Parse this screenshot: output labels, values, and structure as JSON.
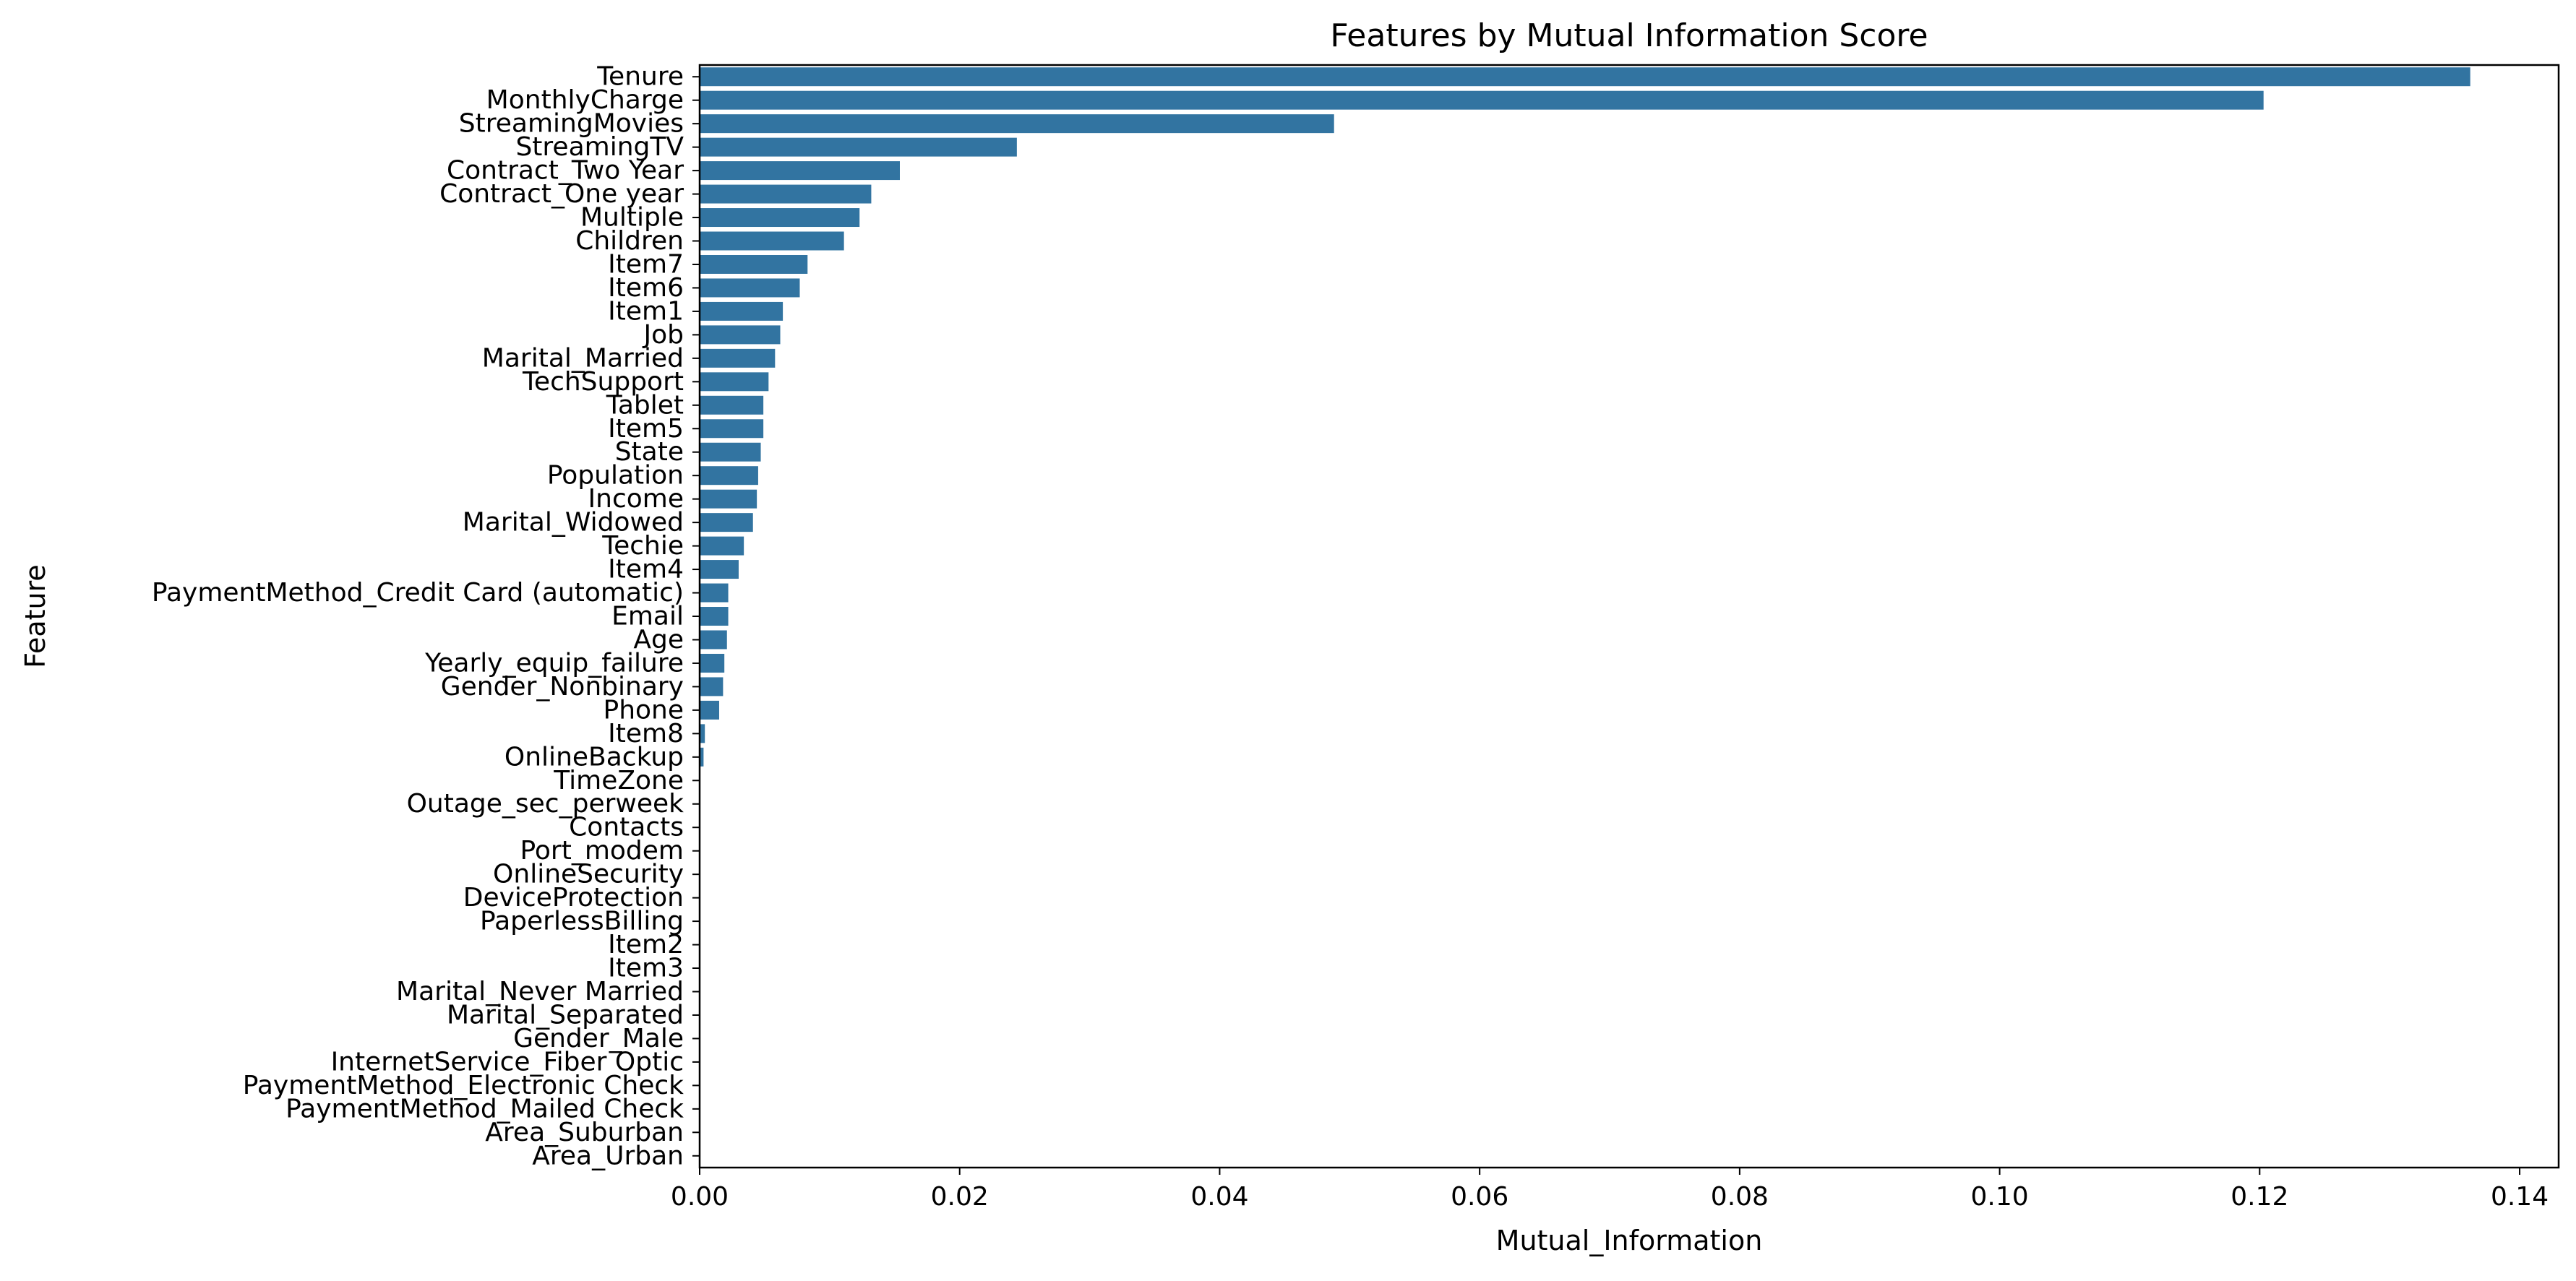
{
  "chart_data": {
    "type": "bar",
    "orientation": "horizontal",
    "title": "Features by Mutual Information Score",
    "xlabel": "Mutual_Information",
    "ylabel": "Feature",
    "xlim": [
      0.0,
      0.143
    ],
    "xticks": [
      0.0,
      0.02,
      0.04,
      0.06,
      0.08,
      0.1,
      0.12,
      0.14
    ],
    "xtick_labels": [
      "0.00",
      "0.02",
      "0.04",
      "0.06",
      "0.08",
      "0.10",
      "0.12",
      "0.14"
    ],
    "grid": false,
    "bar_color": "#3274a1",
    "categories": [
      "Tenure",
      "MonthlyCharge",
      "StreamingMovies",
      "StreamingTV",
      "Contract_Two Year",
      "Contract_One year",
      "Multiple",
      "Children",
      "Item7",
      "Item6",
      "Item1",
      "Job",
      "Marital_Married",
      "TechSupport",
      "Tablet",
      "Item5",
      "State",
      "Population",
      "Income",
      "Marital_Widowed",
      "Techie",
      "Item4",
      "PaymentMethod_Credit Card (automatic)",
      "Email",
      "Age",
      "Yearly_equip_failure",
      "Gender_Nonbinary",
      "Phone",
      "Item8",
      "OnlineBackup",
      "TimeZone",
      "Outage_sec_perweek",
      "Contacts",
      "Port_modem",
      "OnlineSecurity",
      "DeviceProtection",
      "PaperlessBilling",
      "Item2",
      "Item3",
      "Marital_Never Married",
      "Marital_Separated",
      "Gender_Male",
      "InternetService_Fiber Optic",
      "PaymentMethod_Electronic Check",
      "PaymentMethod_Mailed Check",
      "Area_Suburban",
      "Area_Urban"
    ],
    "values": [
      0.1362,
      0.1203,
      0.0488,
      0.0244,
      0.0154,
      0.0132,
      0.0123,
      0.0111,
      0.0083,
      0.0077,
      0.0064,
      0.0062,
      0.0058,
      0.0053,
      0.0049,
      0.0049,
      0.0047,
      0.0045,
      0.0044,
      0.0041,
      0.0034,
      0.003,
      0.0022,
      0.0022,
      0.0021,
      0.0019,
      0.0018,
      0.0015,
      0.0004,
      0.0003,
      0,
      0,
      0,
      0,
      0,
      0,
      0,
      0,
      0,
      0,
      0,
      0,
      0,
      0,
      0,
      0,
      0
    ]
  }
}
